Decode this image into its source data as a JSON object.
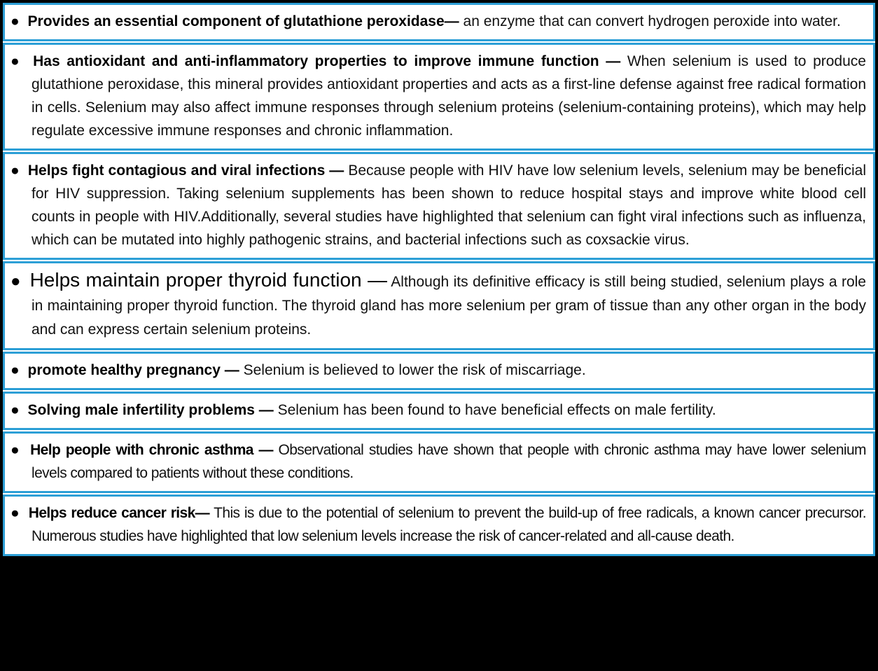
{
  "bullet": "●",
  "colors": {
    "border_blue": "#2d9fd6",
    "frame_black": "#000000",
    "box_background": "#ffffff",
    "text": "#111111"
  },
  "items": [
    {
      "heading": "Provides an essential component of glutathione peroxidase—",
      "body": "an enzyme that can convert hydrogen peroxide into water."
    },
    {
      "heading": "Has antioxidant and anti-inflammatory properties to improve immune function —",
      "body": "When selenium is used to produce glutathione peroxidase, this mineral provides antioxidant properties and acts as a first-line defense against free radical formation in cells. Selenium may also affect immune responses through selenium proteins (selenium-containing proteins), which may help regulate excessive immune responses and chronic inflammation."
    },
    {
      "heading": "Helps fight contagious and viral infections —",
      "body": "Because people with HIV have low selenium levels, selenium may be beneficial for HIV suppression. Taking selenium supplements has been shown to reduce hospital stays and improve white blood cell counts in people with HIV.Additionally, several studies have highlighted that selenium can fight viral infections such as influenza, which can be mutated into highly pathogenic strains, and bacterial infections such as coxsackie virus."
    },
    {
      "heading": "Helps maintain proper thyroid function —",
      "body": "Although its definitive efficacy is still being studied, selenium plays a role in maintaining proper thyroid function. The thyroid gland has more selenium per gram of tissue than any other organ in the body and can express certain selenium proteins."
    },
    {
      "heading": "promote healthy pregnancy —",
      "body": "Selenium is believed to lower the risk of miscarriage."
    },
    {
      "heading": "Solving male infertility problems —",
      "body": "Selenium has been found to have beneficial effects on male fertility."
    },
    {
      "heading": "Help people with chronic asthma —",
      "body": "Observational studies have shown that people with chronic asthma may have lower selenium levels compared to patients without these conditions."
    },
    {
      "heading": "Helps reduce cancer risk—",
      "body": "This is due to the potential of selenium to prevent the build-up of free radicals, a known cancer precursor. Numerous studies have highlighted that low selenium levels increase the risk of cancer-related and all-cause death."
    }
  ]
}
